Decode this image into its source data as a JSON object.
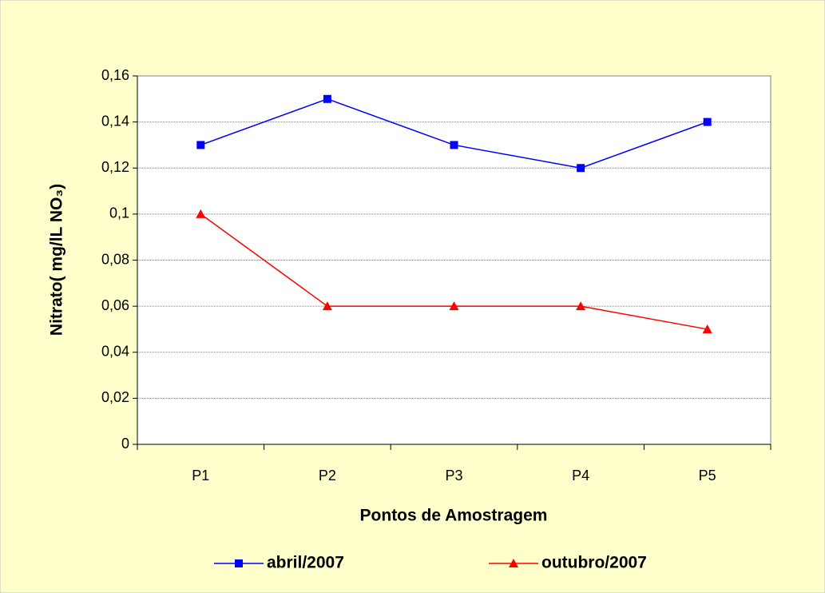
{
  "chart_data": {
    "type": "line",
    "xlabel": "Pontos de Amostragem",
    "ylabel": "Nitrato( mg/lL NO₃)",
    "categories": [
      "P1",
      "P2",
      "P3",
      "P4",
      "P5"
    ],
    "series": [
      {
        "name": "abril/2007",
        "color": "#0000ff",
        "marker": "square",
        "values": [
          0.13,
          0.15,
          0.13,
          0.12,
          0.14
        ]
      },
      {
        "name": "outubro/2007",
        "color": "#ff0000",
        "marker": "triangle",
        "values": [
          0.1,
          0.06,
          0.06,
          0.06,
          0.05
        ]
      }
    ],
    "ylim": [
      0,
      0.16
    ],
    "yticks": [
      0,
      {
        "value": 0.02,
        "label": "0,02"
      },
      {
        "value": 0.04,
        "label": "0,04"
      },
      {
        "value": 0.06,
        "label": "0,06"
      },
      {
        "value": 0.08,
        "label": "0,08"
      },
      {
        "value": 0.1,
        "label": "0,1"
      },
      {
        "value": 0.12,
        "label": "0,12"
      },
      {
        "value": 0.14,
        "label": "0,14"
      },
      {
        "value": 0.16,
        "label": "0,16"
      }
    ],
    "grid": true,
    "legend": "bottom"
  }
}
